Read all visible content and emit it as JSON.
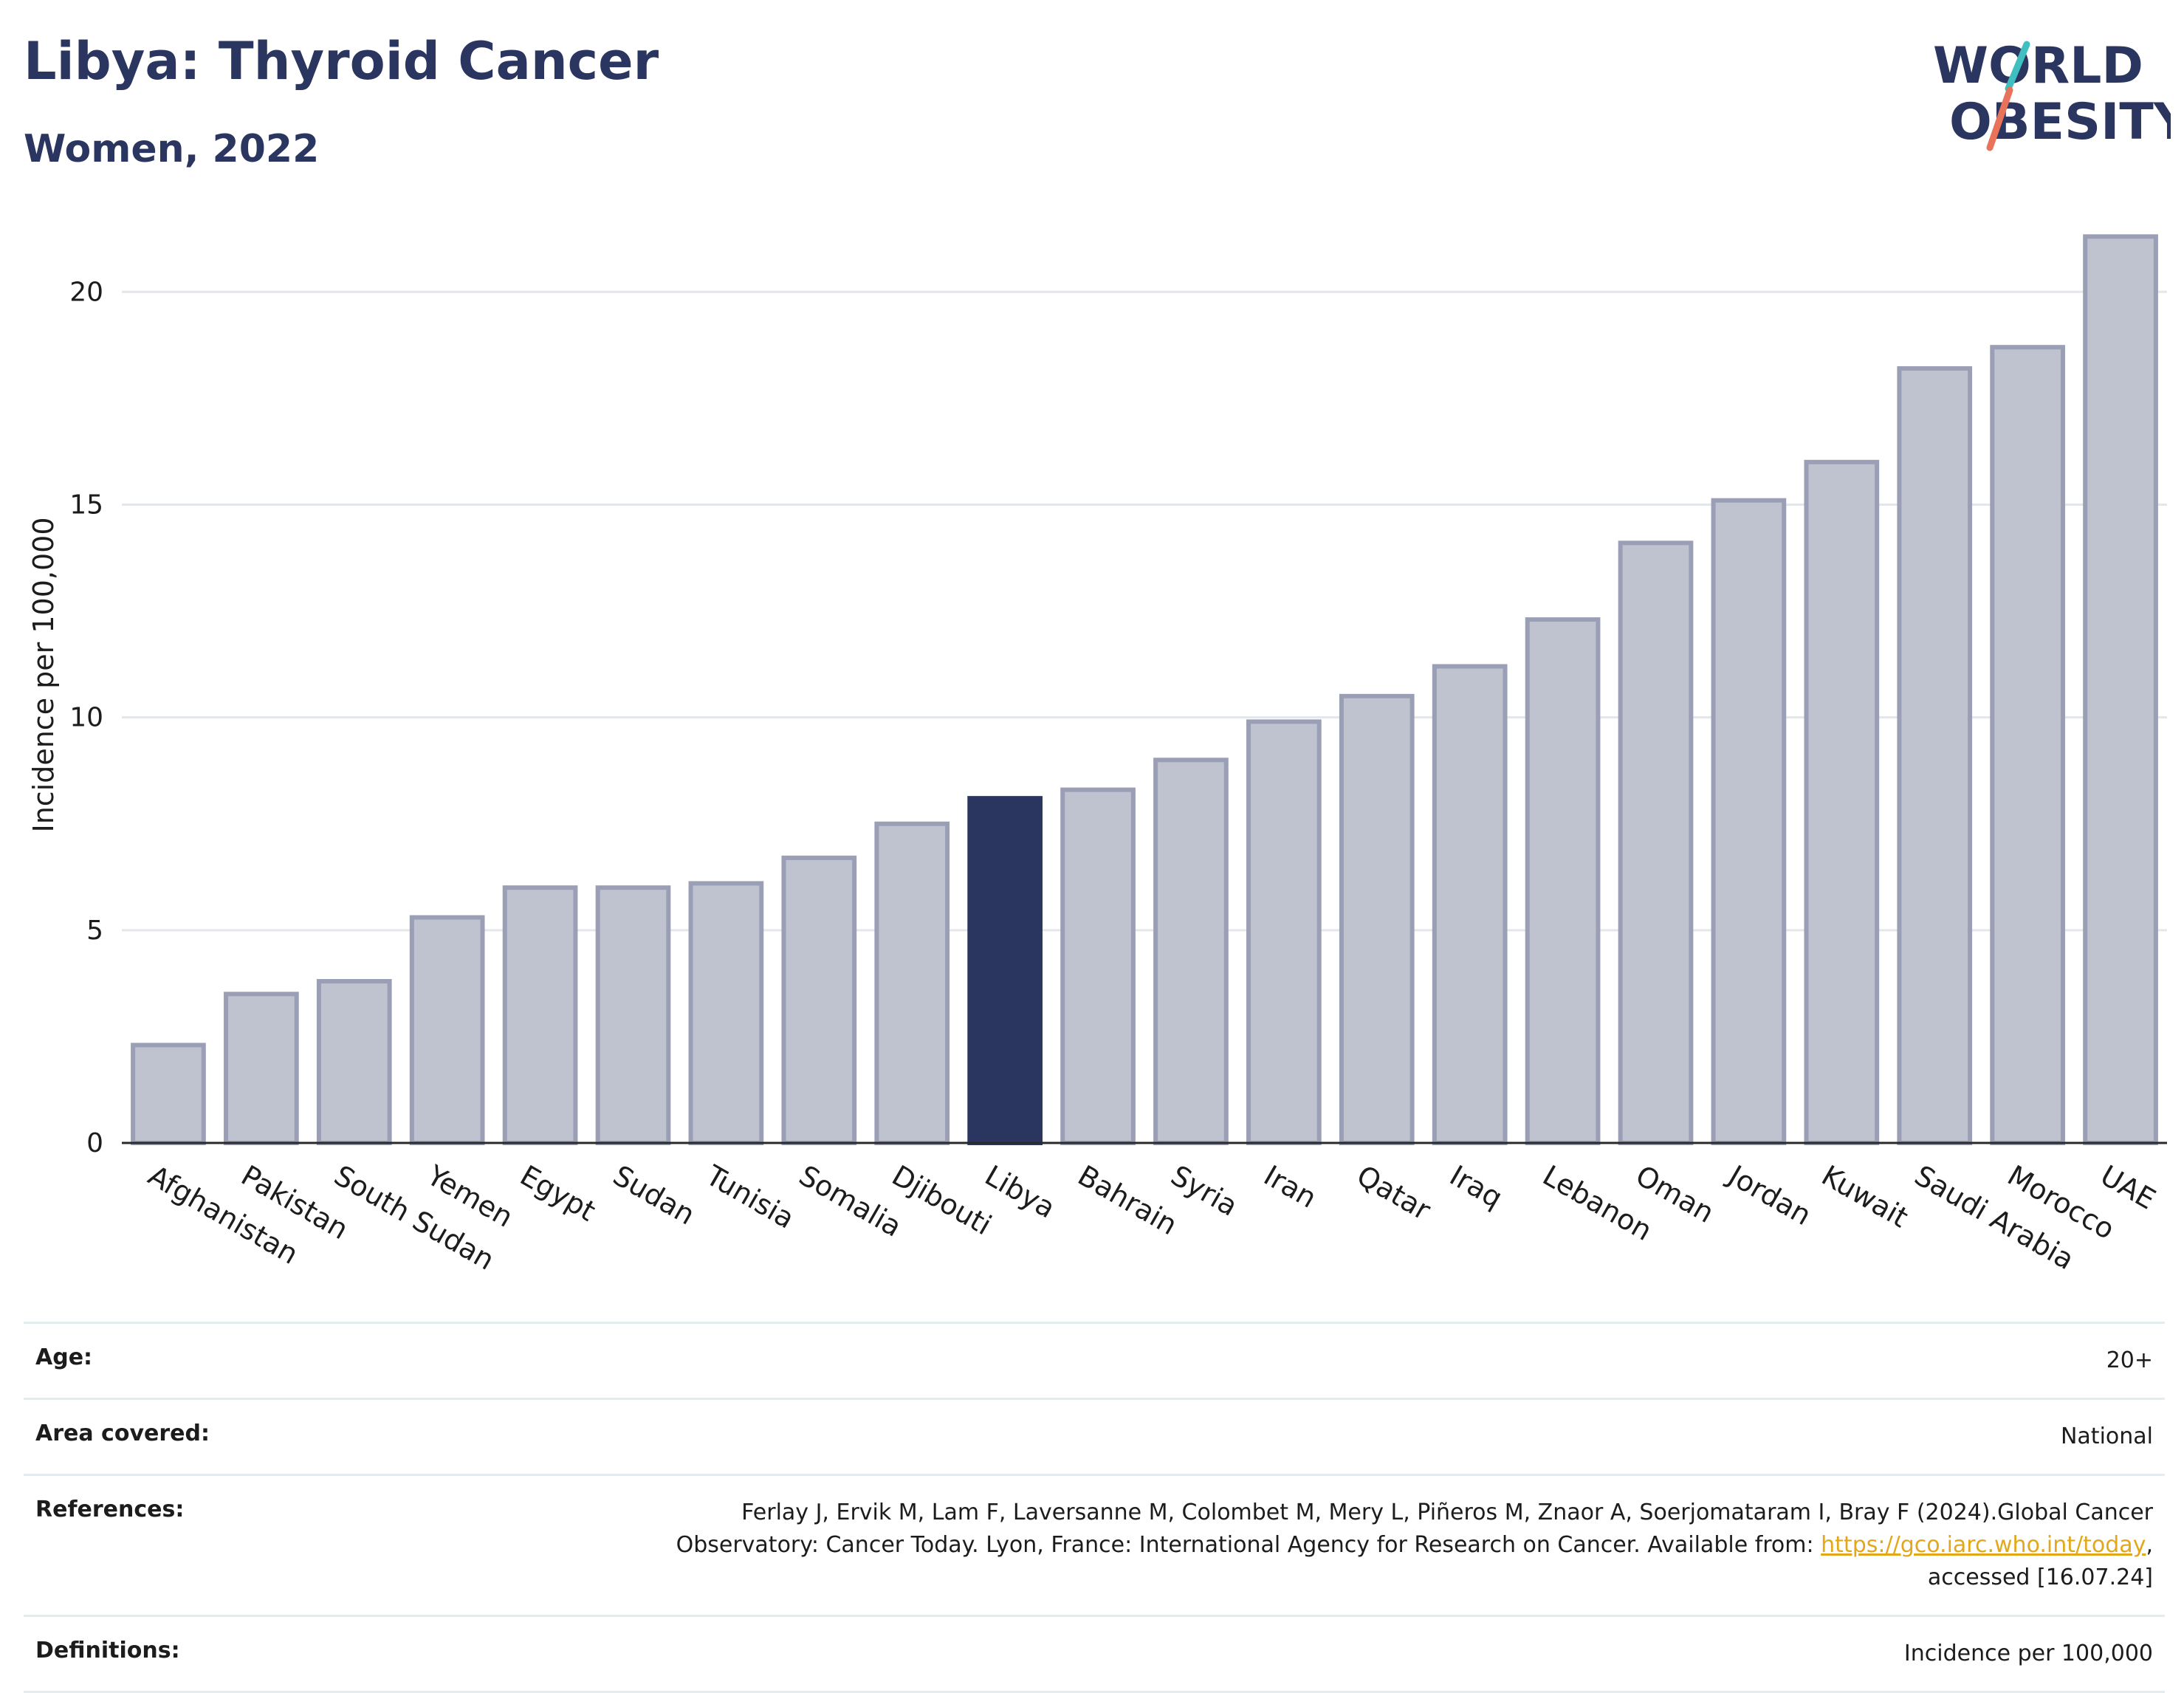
{
  "header": {
    "title": "Libya: Thyroid Cancer",
    "subtitle": "Women, 2022"
  },
  "logo": {
    "line1": "WORLD",
    "line2": "OBESITY",
    "accent_teal": "#3fbfbf",
    "accent_coral": "#e8735a"
  },
  "chart_data": {
    "type": "bar",
    "ylabel": "Incidence per 100,000",
    "ylim": [
      0,
      22
    ],
    "yticks": [
      0,
      5,
      10,
      15,
      20
    ],
    "grid": true,
    "highlight": "Libya",
    "categories": [
      "Afghanistan",
      "Pakistan",
      "South Sudan",
      "Yemen",
      "Egypt",
      "Sudan",
      "Tunisia",
      "Somalia",
      "Djibouti",
      "Libya",
      "Bahrain",
      "Syria",
      "Iran",
      "Qatar",
      "Iraq",
      "Lebanon",
      "Oman",
      "Jordan",
      "Kuwait",
      "Saudi Arabia",
      "Morocco",
      "UAE"
    ],
    "values": [
      2.3,
      3.5,
      3.8,
      5.3,
      6.0,
      6.0,
      6.1,
      6.7,
      7.5,
      8.1,
      8.3,
      9.0,
      9.9,
      10.5,
      11.2,
      12.3,
      14.1,
      15.1,
      16.0,
      18.2,
      18.7,
      21.3
    ],
    "colors": {
      "bar": "#bfc2cf",
      "bar_edge": "#9b9fb6",
      "highlight": "#2a3560",
      "grid": "#e3e6ea"
    }
  },
  "meta": {
    "age_label": "Age:",
    "age_value": "20+",
    "area_label": "Area covered:",
    "area_value": "National",
    "refs_label": "References:",
    "refs_text": "Ferlay J, Ervik M, Lam F, Laversanne M, Colombet M, Mery L, Piñeros M, Znaor A, Soerjomataram I, Bray F (2024).Global Cancer Observatory: Cancer Today. Lyon, France: International Agency for Research on Cancer. Available from:",
    "refs_link": "https://gco.iarc.who.int/today",
    "refs_tail": ", accessed [16.07.24]",
    "defs_label": "Definitions:",
    "defs_value": "Incidence per 100,000"
  }
}
